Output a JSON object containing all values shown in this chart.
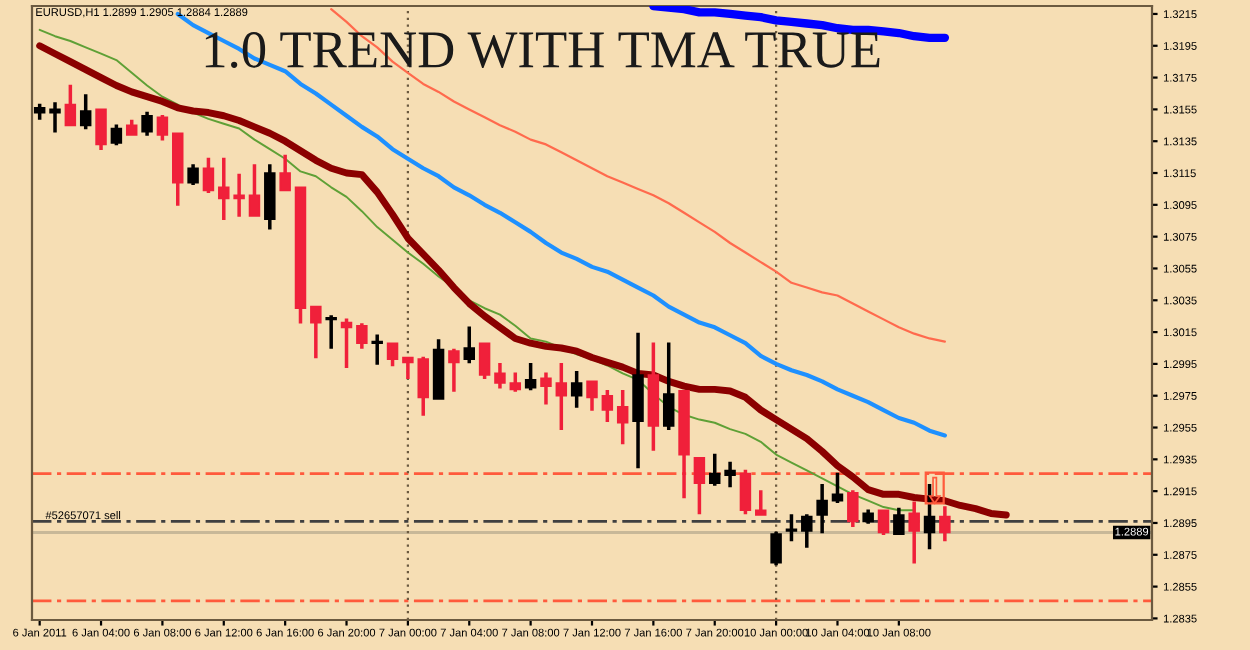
{
  "chart_data": {
    "type": "candlestick",
    "title": "1.0 TREND WITH TMA TRUE",
    "subtitle": "EURUSD,H1 1.2899 1.2905 1.2884 1.2889",
    "categories": [
      "6 Jan 2011",
      null,
      null,
      null,
      "6 Jan 04:00",
      null,
      null,
      null,
      "6 Jan 08:00",
      null,
      null,
      null,
      "6 Jan 12:00",
      null,
      null,
      null,
      "6 Jan 16:00",
      null,
      null,
      null,
      "6 Jan 20:00",
      null,
      null,
      null,
      "7 Jan 00:00",
      null,
      null,
      null,
      "7 Jan 04:00",
      null,
      null,
      null,
      "7 Jan 08:00",
      null,
      null,
      null,
      "7 Jan 12:00",
      null,
      null,
      null,
      "7 Jan 16:00",
      null,
      null,
      null,
      "7 Jan 20:00",
      null,
      null,
      null,
      "10 Jan 00:00",
      null,
      null,
      null,
      "10 Jan 04:00",
      null,
      null,
      null,
      "10 Jan 08:00",
      null,
      null,
      null,
      null,
      null,
      null,
      null,
      null,
      null,
      null,
      null,
      null,
      null,
      null,
      null,
      null
    ],
    "ohlc": [
      [
        1.3153,
        1.3158,
        1.3149,
        1.3156
      ],
      [
        1.3153,
        1.3159,
        1.3141,
        1.3155
      ],
      [
        1.3158,
        1.317,
        1.3145,
        1.3145
      ],
      [
        1.3145,
        1.3164,
        1.3143,
        1.3154
      ],
      [
        1.3155,
        1.3155,
        1.313,
        1.3133
      ],
      [
        1.3134,
        1.3145,
        1.3133,
        1.3143
      ],
      [
        1.3145,
        1.3148,
        1.3139,
        1.3139
      ],
      [
        1.3141,
        1.3153,
        1.3139,
        1.3151
      ],
      [
        1.315,
        1.3151,
        1.3136,
        1.3139
      ],
      [
        1.314,
        1.314,
        1.3095,
        1.3109
      ],
      [
        1.3109,
        1.312,
        1.3108,
        1.3118
      ],
      [
        1.3118,
        1.3124,
        1.3103,
        1.3104
      ],
      [
        1.3106,
        1.3124,
        1.3086,
        1.3099
      ],
      [
        1.3101,
        1.3114,
        1.3088,
        1.3099
      ],
      [
        1.3101,
        1.312,
        1.3088,
        1.3088
      ],
      [
        1.3086,
        1.312,
        1.308,
        1.3115
      ],
      [
        1.3115,
        1.3126,
        1.3104,
        1.3104
      ],
      [
        1.3106,
        1.3106,
        1.3021,
        1.303
      ],
      [
        1.3031,
        1.3031,
        1.2999,
        1.3021
      ],
      [
        1.3023,
        1.3025,
        1.3005,
        1.3024
      ],
      [
        1.3021,
        1.3023,
        1.2993,
        1.3018
      ],
      [
        1.3019,
        1.302,
        1.3005,
        1.3008
      ],
      [
        1.3008,
        1.3013,
        1.2995,
        1.3009
      ],
      [
        1.3008,
        1.3008,
        1.2994,
        1.2998
      ],
      [
        1.2999,
        1.2999,
        1.2986,
        1.2996
      ],
      [
        1.2998,
        1.2999,
        1.2963,
        1.2974
      ],
      [
        1.2973,
        1.301,
        1.2973,
        1.3004
      ],
      [
        1.3003,
        1.3004,
        1.2978,
        1.2996
      ],
      [
        1.2998,
        1.3018,
        1.2996,
        1.3005
      ],
      [
        1.3008,
        1.3008,
        1.2986,
        1.2988
      ],
      [
        1.2989,
        1.2995,
        1.298,
        1.2983
      ],
      [
        1.2983,
        1.2989,
        1.2978,
        1.2979
      ],
      [
        1.298,
        1.2995,
        1.2979,
        1.2985
      ],
      [
        1.2986,
        1.2989,
        1.297,
        1.2981
      ],
      [
        1.2983,
        1.2995,
        1.2954,
        1.2975
      ],
      [
        1.2975,
        1.299,
        1.2968,
        1.2983
      ],
      [
        1.2984,
        1.2984,
        1.2966,
        1.2974
      ],
      [
        1.2975,
        1.2978,
        1.2959,
        1.2966
      ],
      [
        1.2968,
        1.2978,
        1.2945,
        1.2958
      ],
      [
        1.2959,
        1.3014,
        1.293,
        1.2988
      ],
      [
        1.2988,
        1.3008,
        1.2941,
        1.2956
      ],
      [
        1.2956,
        1.3008,
        1.2954,
        1.2976
      ],
      [
        1.2978,
        1.2978,
        1.2911,
        1.2938
      ],
      [
        1.2936,
        1.2936,
        1.2901,
        1.292
      ],
      [
        1.292,
        1.2938,
        1.2919,
        1.2926
      ],
      [
        1.2925,
        1.2933,
        1.2918,
        1.2928
      ],
      [
        1.2926,
        1.2928,
        1.2901,
        1.2903
      ],
      [
        1.2903,
        1.2915,
        1.29,
        1.29
      ],
      [
        1.287,
        1.2889,
        1.2869,
        1.2888
      ],
      [
        1.289,
        1.29,
        1.2884,
        1.2891
      ],
      [
        1.289,
        1.29,
        1.288,
        1.2899
      ],
      [
        1.29,
        1.2919,
        1.2889,
        1.2909
      ],
      [
        1.2909,
        1.2926,
        1.2908,
        1.2913
      ],
      [
        1.2914,
        1.2915,
        1.2893,
        1.2896
      ],
      [
        1.2896,
        1.2903,
        1.2895,
        1.2901
      ],
      [
        1.2903,
        1.2903,
        1.2888,
        1.2889
      ],
      [
        1.2888,
        1.2904,
        1.2888,
        1.29
      ],
      [
        1.2901,
        1.2908,
        1.287,
        1.289
      ],
      [
        1.2889,
        1.2919,
        1.2879,
        1.2899
      ],
      [
        1.2899,
        1.2905,
        1.2884,
        1.2889
      ],
      null,
      null,
      null,
      null,
      null,
      null,
      null,
      null,
      null,
      null,
      null,
      null,
      null
    ],
    "colors": [
      "#000000",
      "#000000",
      "#f0203a",
      "#000000",
      "#f0203a",
      "#000000",
      "#f0203a",
      "#000000",
      "#f0203a",
      "#f0203a",
      "#000000",
      "#f0203a",
      "#f0203a",
      "#f0203a",
      "#f0203a",
      "#000000",
      "#f0203a",
      "#f0203a",
      "#f0203a",
      "#000000",
      "#f0203a",
      "#f0203a",
      "#000000",
      "#f0203a",
      "#f0203a",
      "#f0203a",
      "#000000",
      "#f0203a",
      "#000000",
      "#f0203a",
      "#f0203a",
      "#f0203a",
      "#000000",
      "#f0203a",
      "#f0203a",
      "#000000",
      "#f0203a",
      "#f0203a",
      "#f0203a",
      "#000000",
      "#f0203a",
      "#000000",
      "#f0203a",
      "#f0203a",
      "#000000",
      "#000000",
      "#f0203a",
      "#f0203a",
      "#000000",
      "#000000",
      "#000000",
      "#000000",
      "#000000",
      "#f0203a",
      "#000000",
      "#f0203a",
      "#000000",
      "#f0203a",
      "#000000",
      "#f0203a",
      null,
      null,
      null,
      null,
      null,
      null,
      null,
      null,
      null,
      null,
      null,
      null,
      null
    ],
    "series": [
      {
        "type": "line",
        "color": "#ff6a4d",
        "values": [
          null,
          null,
          null,
          null,
          null,
          null,
          null,
          null,
          null,
          null,
          null,
          null,
          null,
          null,
          null,
          null,
          null,
          null,
          null,
          1.3218,
          1.321,
          1.3201,
          1.3194,
          1.3185,
          1.3178,
          1.3171,
          1.3166,
          1.316,
          1.3155,
          1.315,
          1.3145,
          1.3141,
          1.3136,
          1.3133,
          1.3128,
          1.3123,
          1.3118,
          1.3113,
          1.3109,
          1.3105,
          1.3101,
          1.3096,
          1.309,
          1.3084,
          1.3078,
          1.3071,
          1.3065,
          1.3059,
          1.3053,
          1.3046,
          1.3043,
          1.304,
          1.3038,
          1.3033,
          1.3028,
          1.3023,
          1.3018,
          1.3014,
          1.3011,
          1.3009,
          null,
          null,
          null,
          null,
          null,
          null,
          null,
          null,
          null,
          null,
          null,
          null,
          null
        ]
      },
      {
        "type": "line",
        "color": "#1e90ff",
        "values": [
          null,
          null,
          null,
          null,
          null,
          null,
          null,
          null,
          null,
          1.3215,
          1.3208,
          1.3203,
          1.3198,
          1.3193,
          1.3187,
          1.3183,
          1.3179,
          1.3171,
          1.3165,
          1.3158,
          1.3151,
          1.3144,
          1.3138,
          1.313,
          1.3124,
          1.3118,
          1.3113,
          1.3106,
          1.3101,
          1.3095,
          1.309,
          1.3084,
          1.3078,
          1.3071,
          1.3065,
          1.3061,
          1.3056,
          1.3053,
          1.3048,
          1.3043,
          1.3038,
          1.3031,
          1.3026,
          1.3021,
          1.3018,
          1.3013,
          1.3008,
          1.3,
          1.2995,
          1.2991,
          1.2988,
          1.2984,
          1.2979,
          1.2975,
          1.2971,
          1.2966,
          1.2961,
          1.2958,
          1.2953,
          1.295,
          null,
          null,
          null,
          null,
          null,
          null,
          null,
          null,
          null,
          null,
          null,
          null,
          null
        ]
      },
      {
        "type": "line",
        "color": "#0000ff",
        "values": [
          null,
          null,
          null,
          null,
          null,
          null,
          null,
          null,
          null,
          null,
          null,
          null,
          null,
          null,
          null,
          null,
          null,
          null,
          null,
          null,
          null,
          null,
          null,
          null,
          null,
          null,
          null,
          null,
          null,
          null,
          null,
          null,
          null,
          null,
          null,
          null,
          null,
          null,
          null,
          null,
          1.322,
          1.3219,
          1.3218,
          1.3216,
          1.3216,
          1.3215,
          1.3214,
          1.3213,
          1.3211,
          1.321,
          1.3209,
          1.3208,
          1.3206,
          1.3205,
          1.3205,
          1.3204,
          1.3203,
          1.3201,
          1.32,
          1.32,
          null,
          null,
          null,
          null,
          null,
          null,
          null,
          null,
          null,
          null,
          null,
          null,
          null
        ]
      },
      {
        "type": "line",
        "color": "#5fa036",
        "values": [
          1.3205,
          1.3201,
          1.3198,
          1.3194,
          1.319,
          1.3186,
          1.3178,
          1.317,
          1.3163,
          1.3158,
          1.3153,
          1.3149,
          1.3146,
          1.3143,
          1.3136,
          1.313,
          1.3124,
          1.3116,
          1.3113,
          1.3106,
          1.31,
          1.3091,
          1.3081,
          1.3073,
          1.3065,
          1.3058,
          1.305,
          1.3043,
          1.3035,
          1.303,
          1.3026,
          1.3019,
          1.3011,
          1.3009,
          1.3005,
          1.3001,
          1.2998,
          1.2994,
          1.2989,
          1.2985,
          1.2976,
          1.2968,
          1.2963,
          1.296,
          1.2958,
          1.2954,
          1.2951,
          1.2946,
          1.2938,
          1.2933,
          1.2928,
          1.2923,
          1.2918,
          1.2913,
          1.2909,
          1.2905,
          1.2903,
          1.2903,
          null,
          null,
          null,
          null,
          null,
          null,
          null,
          null,
          null,
          null,
          null,
          null,
          null,
          null,
          null
        ]
      },
      {
        "type": "line",
        "color": "#8b0000",
        "values": [
          1.3195,
          1.319,
          1.3185,
          1.318,
          1.3175,
          1.317,
          1.3166,
          1.3163,
          1.316,
          1.3156,
          1.3154,
          1.3153,
          1.3151,
          1.3148,
          1.3144,
          1.314,
          1.3135,
          1.3129,
          1.3123,
          1.3118,
          1.3115,
          1.3114,
          1.3103,
          1.3089,
          1.3074,
          1.3064,
          1.3054,
          1.3043,
          1.3033,
          1.3025,
          1.3018,
          1.3011,
          1.3008,
          1.3006,
          1.3005,
          1.3003,
          1.2999,
          1.2996,
          1.2993,
          1.2989,
          1.2988,
          1.2984,
          1.2981,
          1.2979,
          1.2979,
          1.2978,
          1.2974,
          1.2966,
          1.296,
          1.2954,
          1.2948,
          1.294,
          1.2931,
          1.2924,
          1.2916,
          1.2913,
          1.2913,
          1.2911,
          1.291,
          1.2909,
          1.2906,
          1.2904,
          1.2901,
          1.29,
          null,
          null,
          null,
          null,
          null,
          null,
          null,
          null,
          null
        ]
      }
    ],
    "ref_lines": [
      {
        "axis": "y",
        "value": 1.2926,
        "color": "#ff5a3c",
        "line_style": "dashed"
      },
      {
        "axis": "y",
        "value": 1.2896,
        "label": "#52657071 sell",
        "color": "#404040",
        "line_style": "dashed"
      },
      {
        "axis": "y",
        "value": 1.2889,
        "label": "1.2889",
        "color": "#c8b898",
        "line_style": "solid"
      },
      {
        "axis": "y",
        "value": 1.2846,
        "color": "#ff5a3c",
        "line_style": "dashed"
      },
      {
        "axis": "x",
        "value": "7 Jan 00:00",
        "color": "#6b5a40",
        "line_style": "dotted"
      },
      {
        "axis": "x",
        "value": "10 Jan 00:00",
        "color": "#6b5a40",
        "line_style": "dotted"
      }
    ],
    "ylim": [
      1.2834,
      1.322
    ],
    "yticks": [
      1.3215,
      1.3195,
      1.3175,
      1.3155,
      1.3135,
      1.3115,
      1.3095,
      1.3075,
      1.3055,
      1.3035,
      1.3015,
      1.2995,
      1.2975,
      1.2955,
      1.2935,
      1.2915,
      1.2895,
      1.2875,
      1.2855,
      1.2835
    ],
    "grid": false,
    "legend": false
  }
}
